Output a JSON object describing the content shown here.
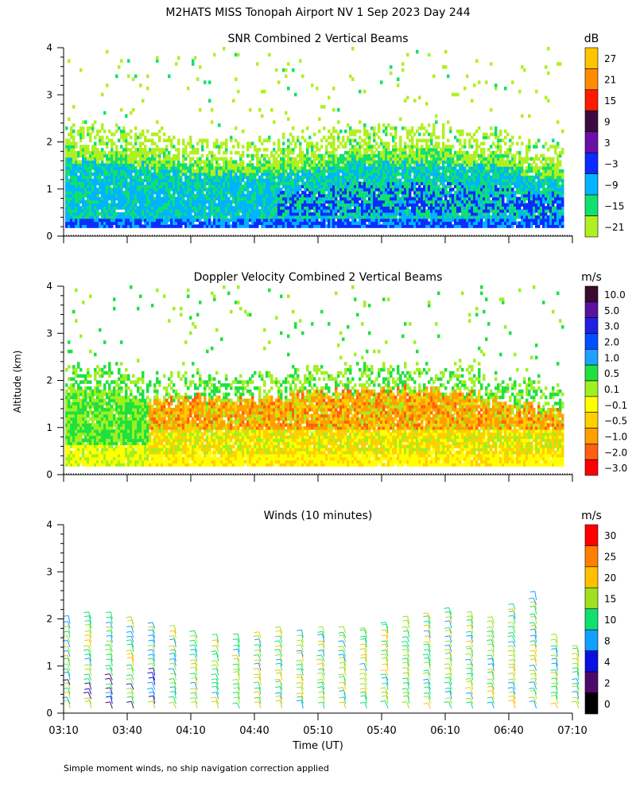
{
  "figure": {
    "title": "M2HATS MISS Tonopah Airport NV   1 Sep 2023 Day 244",
    "ylabel": "Altitude (km)",
    "xlabel": "Time (UT)",
    "footnote": "Simple moment winds, no ship navigation correction applied"
  },
  "chart_data": [
    {
      "type": "heatmap",
      "title": "SNR Combined 2 Vertical Beams",
      "x_ticks": [
        "03:10",
        "03:40",
        "04:10",
        "04:40",
        "05:10",
        "05:40",
        "06:10",
        "06:40",
        "07:10"
      ],
      "y_ticks": [
        "0",
        "1",
        "2",
        "3",
        "4"
      ],
      "xlim_minutes_utc": [
        190,
        430
      ],
      "ylim_km": [
        0,
        4
      ],
      "colorbar": {
        "unit": "dB",
        "labels": [
          "27",
          "21",
          "15",
          "9",
          "3",
          "−3",
          "−9",
          "−15",
          "−21"
        ],
        "colors": [
          "#ffc400",
          "#ff8c00",
          "#ff1a00",
          "#3a0a40",
          "#6a0fa8",
          "#0a2cff",
          "#00b4ff",
          "#10e070",
          "#b0f020"
        ]
      },
      "profile_time_minutes": [
        190,
        210,
        230,
        250,
        270,
        290,
        310,
        330,
        350,
        370,
        390,
        410,
        430
      ],
      "boundary_layer_top_km": [
        1.9,
        1.8,
        1.7,
        1.55,
        1.5,
        1.55,
        1.7,
        1.8,
        1.8,
        1.8,
        1.7,
        1.5,
        1.3
      ]
    },
    {
      "type": "heatmap",
      "title": "Doppler Velocity Combined 2 Vertical Beams",
      "x_ticks": [
        "03:10",
        "03:40",
        "04:10",
        "04:40",
        "05:10",
        "05:40",
        "06:10",
        "06:40",
        "07:10"
      ],
      "y_ticks": [
        "0",
        "1",
        "2",
        "3",
        "4"
      ],
      "xlim_minutes_utc": [
        190,
        430
      ],
      "ylim_km": [
        0,
        4
      ],
      "colorbar": {
        "unit": "m/s",
        "labels": [
          "10.0",
          "5.0",
          "3.0",
          "2.0",
          "1.0",
          "0.5",
          "0.1",
          "−0.1",
          "−0.5",
          "−1.0",
          "−2.0",
          "−3.0"
        ],
        "colors": [
          "#3a0a30",
          "#5a10a0",
          "#2020e0",
          "#0050ff",
          "#20a0ff",
          "#20e040",
          "#a0f020",
          "#ffff00",
          "#ffd000",
          "#ffa000",
          "#ff6010",
          "#ff0000"
        ]
      },
      "profile_time_minutes": [
        190,
        210,
        230,
        250,
        270,
        290,
        310,
        330,
        350,
        370,
        390,
        410,
        430
      ],
      "boundary_layer_top_km": [
        1.85,
        1.8,
        1.55,
        1.6,
        1.55,
        1.6,
        1.7,
        1.75,
        1.8,
        1.75,
        1.6,
        1.4,
        1.3
      ]
    },
    {
      "type": "wind-barbs",
      "title": "Winds (10 minutes)",
      "x_ticks": [
        "03:10",
        "03:40",
        "04:10",
        "04:40",
        "05:10",
        "05:40",
        "06:10",
        "06:40",
        "07:10"
      ],
      "y_ticks": [
        "0",
        "1",
        "2",
        "3",
        "4"
      ],
      "xlim_minutes_utc": [
        190,
        430
      ],
      "ylim_km": [
        0,
        4
      ],
      "colorbar": {
        "unit": "m/s",
        "labels": [
          "30",
          "25",
          "20",
          "15",
          "10",
          "8",
          "4",
          "2",
          "0"
        ],
        "colors": [
          "#ff0000",
          "#ff8000",
          "#ffc000",
          "#a0e020",
          "#10e070",
          "#10a0ff",
          "#0a10e0",
          "#4a0a6a",
          "#000000"
        ]
      },
      "profile_time_minutes": [
        190,
        200,
        210,
        220,
        230,
        240,
        250,
        260,
        270,
        280,
        290,
        300,
        310,
        320,
        330,
        340,
        350,
        360,
        370,
        380,
        390,
        400,
        410,
        420,
        430
      ],
      "profile_top_km": [
        2.0,
        2.05,
        2.1,
        2.0,
        1.9,
        1.8,
        1.7,
        1.55,
        1.6,
        1.7,
        1.75,
        1.65,
        1.75,
        1.75,
        1.8,
        1.85,
        1.95,
        2.1,
        2.2,
        2.1,
        2.0,
        2.3,
        2.5,
        1.6,
        1.3
      ]
    }
  ]
}
